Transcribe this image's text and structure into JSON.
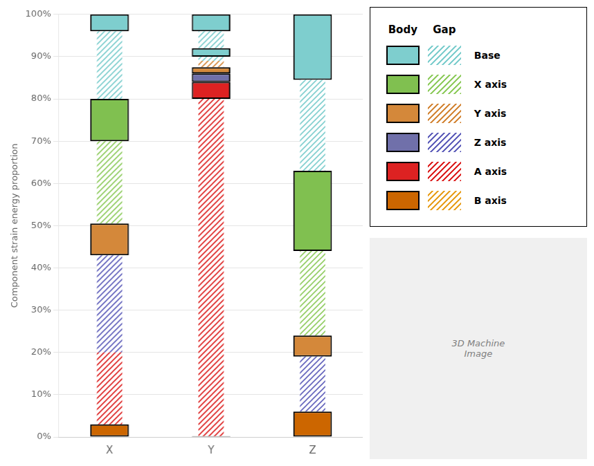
{
  "chart_data": {
    "type": "bar",
    "stacked": true,
    "grid": true,
    "ylabel": "Component strain energy proportion",
    "categories": [
      "X",
      "Y",
      "Z"
    ],
    "ylim": [
      0.0,
      1.0
    ],
    "yticks": [
      {
        "value": 0.0,
        "label": "0%"
      },
      {
        "value": 0.1,
        "label": "10%"
      },
      {
        "value": 0.2,
        "label": "20%"
      },
      {
        "value": 0.3,
        "label": "30%"
      },
      {
        "value": 0.4,
        "label": "40%"
      },
      {
        "value": 0.5,
        "label": "50%"
      },
      {
        "value": 0.6,
        "label": "60%"
      },
      {
        "value": 0.7,
        "label": "70%"
      },
      {
        "value": 0.8,
        "label": "80%"
      },
      {
        "value": 0.9,
        "label": "90%"
      },
      {
        "value": 1.0,
        "label": "100%"
      }
    ],
    "legend_columns": [
      "Body",
      "Gap"
    ],
    "series": [
      {
        "name": "Base",
        "color": "#7ecece",
        "gap_color": "#7ecece"
      },
      {
        "name": "X axis",
        "color": "#80c050",
        "gap_color": "#90cc60"
      },
      {
        "name": "Y axis",
        "color": "#d4883a",
        "gap_color": "#d4883a"
      },
      {
        "name": "Z axis",
        "color": "#7070aa",
        "gap_color": "#6060bb"
      },
      {
        "name": "A axis",
        "color": "#dd2222",
        "gap_color": "#dd2222"
      },
      {
        "name": "B axis",
        "color": "#cc6600",
        "gap_color": "#e8a020"
      }
    ],
    "segments": [
      [
        {
          "series": "B axis",
          "part": "Body",
          "value": 0.03
        },
        {
          "series": "A axis",
          "part": "Gap",
          "value": 0.17
        },
        {
          "series": "Z axis",
          "part": "Gap",
          "value": 0.23
        },
        {
          "series": "Y axis",
          "part": "Body",
          "value": 0.075
        },
        {
          "series": "X axis",
          "part": "Gap",
          "value": 0.195
        },
        {
          "series": "X axis",
          "part": "Body",
          "value": 0.1
        },
        {
          "series": "Base",
          "part": "Gap",
          "value": 0.16
        },
        {
          "series": "Base",
          "part": "Body",
          "value": 0.04
        }
      ],
      [
        {
          "series": "A axis",
          "part": "Body",
          "value": 0.002
        },
        {
          "series": "A axis",
          "part": "Gap",
          "value": 0.798
        },
        {
          "series": "A axis",
          "part": "Body",
          "value": 0.04
        },
        {
          "series": "Z axis",
          "part": "Body",
          "value": 0.02
        },
        {
          "series": "Y axis",
          "part": "Body",
          "value": 0.015
        },
        {
          "series": "Y axis",
          "part": "Gap",
          "value": 0.015
        },
        {
          "series": "Base",
          "part": "Gap",
          "value": 0.01
        },
        {
          "series": "Base",
          "part": "Body",
          "value": 0.02
        },
        {
          "series": "Base",
          "part": "Gap",
          "value": 0.04
        },
        {
          "series": "Base",
          "part": "Body",
          "value": 0.04
        }
      ],
      [
        {
          "series": "B axis",
          "part": "Body",
          "value": 0.06
        },
        {
          "series": "Z axis",
          "part": "Gap",
          "value": 0.13
        },
        {
          "series": "Y axis",
          "part": "Body",
          "value": 0.05
        },
        {
          "series": "X axis",
          "part": "Gap",
          "value": 0.2
        },
        {
          "series": "X axis",
          "part": "Body",
          "value": 0.19
        },
        {
          "series": "Base",
          "part": "Gap",
          "value": 0.215
        },
        {
          "series": "Base",
          "part": "Body",
          "value": 0.155
        }
      ]
    ],
    "annotations": [
      "3D Machine\nImage"
    ]
  }
}
